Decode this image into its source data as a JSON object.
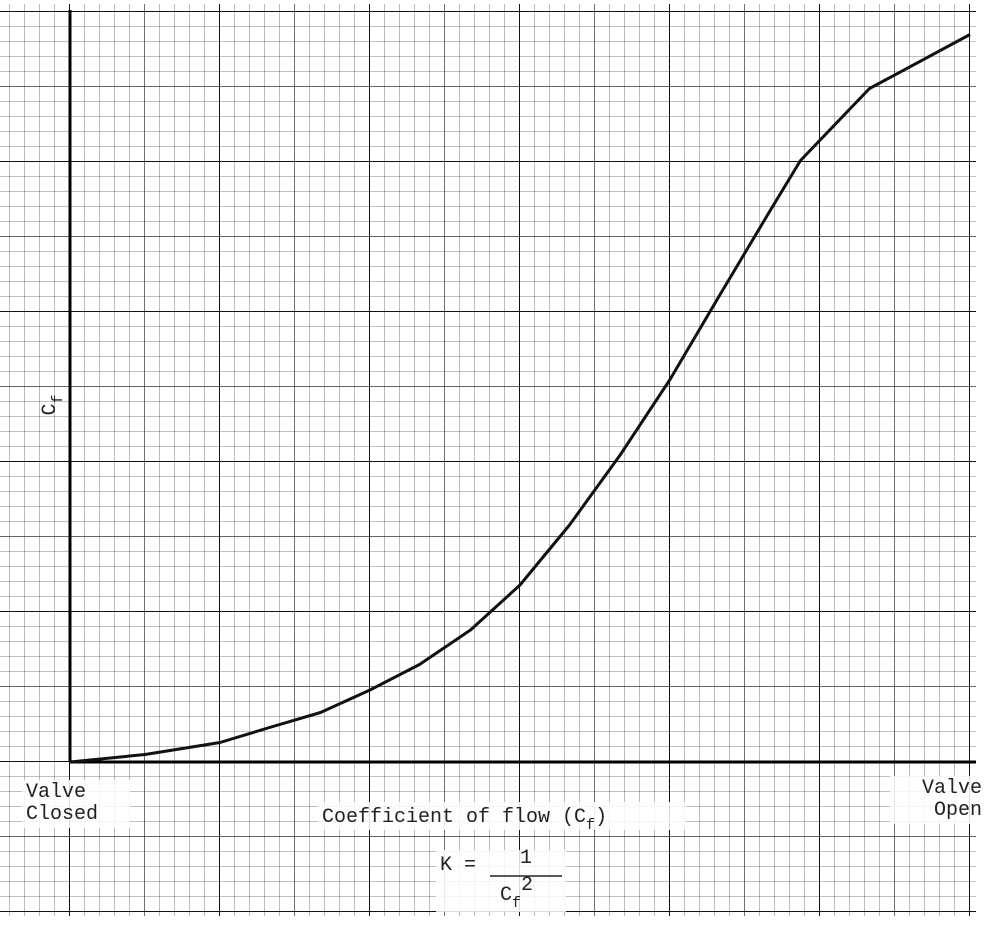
{
  "chart_data": {
    "type": "line",
    "ylabel": {
      "base": "C",
      "subscript": "f"
    },
    "xlabel": {
      "text": "Coefficient of flow (C",
      "subscript": "f",
      "close": ")"
    },
    "x_start_label": [
      "Valve",
      "Closed"
    ],
    "x_end_label": [
      "Valve",
      "Open"
    ],
    "formula": {
      "lhs": "K =",
      "numerator": "1",
      "denominator": {
        "base": "C",
        "subscript": "f",
        "exponent": "2"
      }
    },
    "xlim": [
      0,
      6
    ],
    "ylim": [
      0,
      5
    ],
    "x": [
      0,
      0.5,
      1,
      1.33,
      1.67,
      2,
      2.33,
      2.67,
      3,
      3.33,
      3.67,
      4,
      4.33,
      4.67,
      4.87,
      5.33,
      6
    ],
    "series": [
      {
        "color": "#111111",
        "values": [
          0,
          0.05,
          0.13,
          0.23,
          0.33,
          0.48,
          0.65,
          0.88,
          1.18,
          1.58,
          2.05,
          2.55,
          3.11,
          3.68,
          4.01,
          4.49,
          4.85
        ]
      }
    ]
  }
}
